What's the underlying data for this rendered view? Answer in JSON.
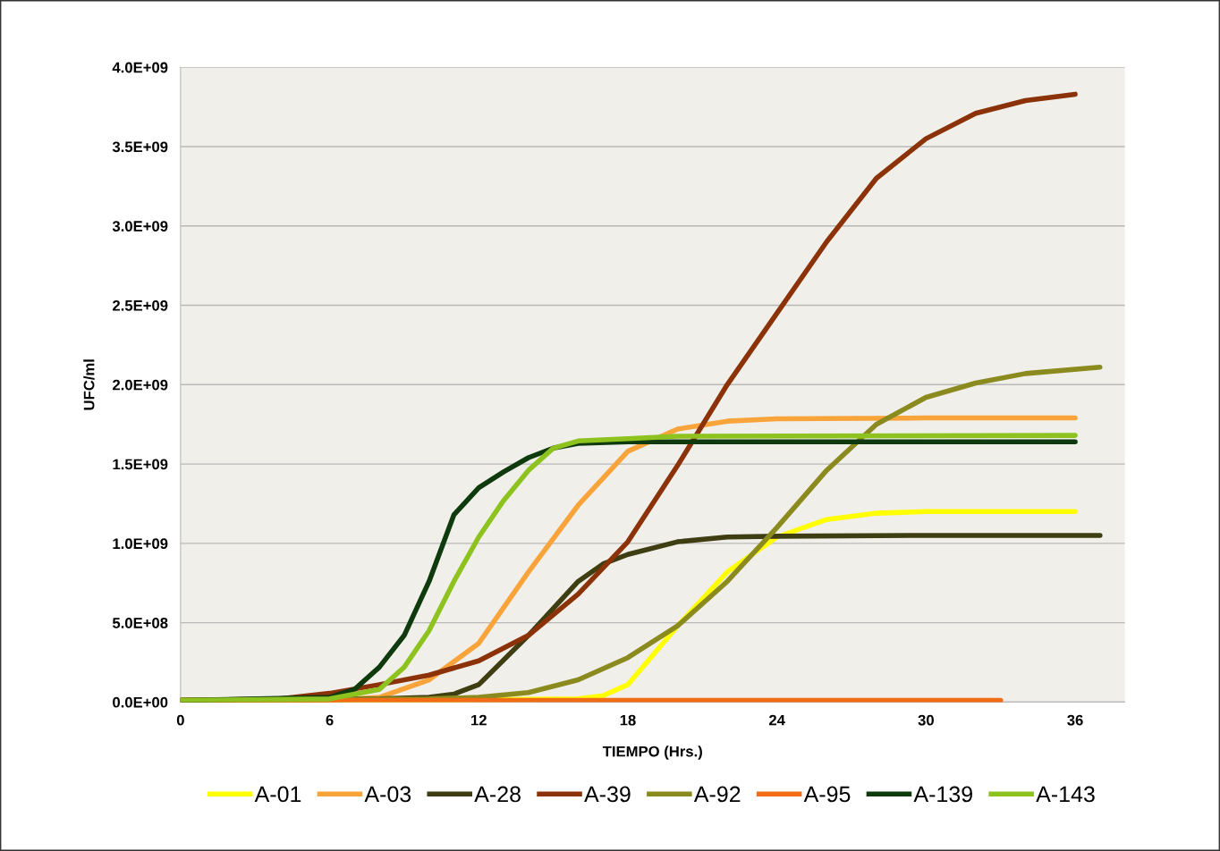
{
  "chart_data": {
    "type": "line",
    "xlabel": "TIEMPO (Hrs.)",
    "ylabel": "UFC/ml",
    "xlim": [
      0,
      38
    ],
    "xticks": [
      0,
      6,
      12,
      18,
      24,
      30,
      36
    ],
    "ylim": [
      0,
      4000000000
    ],
    "yticks": [
      {
        "value": 0,
        "label": "0.0E+00"
      },
      {
        "value": 500000000,
        "label": "5.0E+08"
      },
      {
        "value": 1000000000,
        "label": "1.0E+09"
      },
      {
        "value": 1500000000,
        "label": "1.5E+09"
      },
      {
        "value": 2000000000,
        "label": "2.0E+09"
      },
      {
        "value": 2500000000,
        "label": "2.5E+09"
      },
      {
        "value": 3000000000,
        "label": "3.0E+09"
      },
      {
        "value": 3500000000,
        "label": "3.5E+09"
      },
      {
        "value": 4000000000,
        "label": "4.0E+09"
      }
    ],
    "grid": "y",
    "legend": "bottom",
    "marker": "none",
    "line_style": "solid",
    "series": [
      {
        "name": "A-01",
        "color": "#ffff00",
        "x": [
          0,
          6,
          12,
          16,
          17,
          18,
          20,
          22,
          24,
          26,
          28,
          30,
          36
        ],
        "values": [
          10000000,
          10000000,
          15000000,
          20000000,
          40000000,
          110000000,
          480000000,
          820000000,
          1040000000,
          1150000000,
          1190000000,
          1200000000,
          1200000000
        ]
      },
      {
        "name": "A-03",
        "color": "#f9a43a",
        "x": [
          0,
          6,
          8,
          10,
          12,
          14,
          16,
          18,
          20,
          22,
          24,
          30,
          36
        ],
        "values": [
          10000000,
          10000000,
          30000000,
          140000000,
          370000000,
          820000000,
          1240000000,
          1580000000,
          1720000000,
          1770000000,
          1785000000,
          1790000000,
          1790000000
        ]
      },
      {
        "name": "A-28",
        "color": "#3f3d12",
        "x": [
          0,
          8,
          10,
          11,
          12,
          14,
          16,
          17,
          18,
          20,
          22,
          24,
          30,
          37
        ],
        "values": [
          10000000,
          20000000,
          30000000,
          50000000,
          110000000,
          420000000,
          760000000,
          870000000,
          930000000,
          1010000000,
          1040000000,
          1045000000,
          1050000000,
          1050000000
        ]
      },
      {
        "name": "A-39",
        "color": "#8b3209",
        "x": [
          0,
          4,
          6,
          8,
          10,
          12,
          14,
          16,
          18,
          20,
          22,
          24,
          26,
          28,
          30,
          32,
          34,
          36
        ],
        "values": [
          10000000,
          20000000,
          55000000,
          110000000,
          170000000,
          260000000,
          420000000,
          680000000,
          1010000000,
          1490000000,
          2000000000,
          2450000000,
          2900000000,
          3300000000,
          3550000000,
          3710000000,
          3790000000,
          3830000000
        ]
      },
      {
        "name": "A-92",
        "color": "#8a8a1e",
        "x": [
          0,
          10,
          12,
          14,
          16,
          18,
          20,
          22,
          24,
          26,
          28,
          30,
          32,
          34,
          37
        ],
        "values": [
          10000000,
          20000000,
          30000000,
          60000000,
          140000000,
          280000000,
          480000000,
          760000000,
          1100000000,
          1460000000,
          1750000000,
          1920000000,
          2010000000,
          2070000000,
          2110000000
        ]
      },
      {
        "name": "A-95",
        "color": "#f26b15",
        "x": [
          0,
          33
        ],
        "values": [
          10000000,
          10000000
        ]
      },
      {
        "name": "A-139",
        "color": "#0e3a0e",
        "x": [
          0,
          6,
          7,
          8,
          9,
          10,
          11,
          12,
          13,
          14,
          15,
          16,
          18,
          36
        ],
        "values": [
          10000000,
          30000000,
          80000000,
          220000000,
          420000000,
          760000000,
          1180000000,
          1350000000,
          1450000000,
          1540000000,
          1600000000,
          1630000000,
          1640000000,
          1640000000
        ]
      },
      {
        "name": "A-143",
        "color": "#8dc21f",
        "x": [
          0,
          6,
          8,
          9,
          10,
          11,
          12,
          13,
          14,
          15,
          16,
          18,
          20,
          36
        ],
        "values": [
          10000000,
          20000000,
          80000000,
          220000000,
          450000000,
          760000000,
          1040000000,
          1270000000,
          1460000000,
          1600000000,
          1645000000,
          1660000000,
          1675000000,
          1680000000
        ]
      }
    ]
  }
}
